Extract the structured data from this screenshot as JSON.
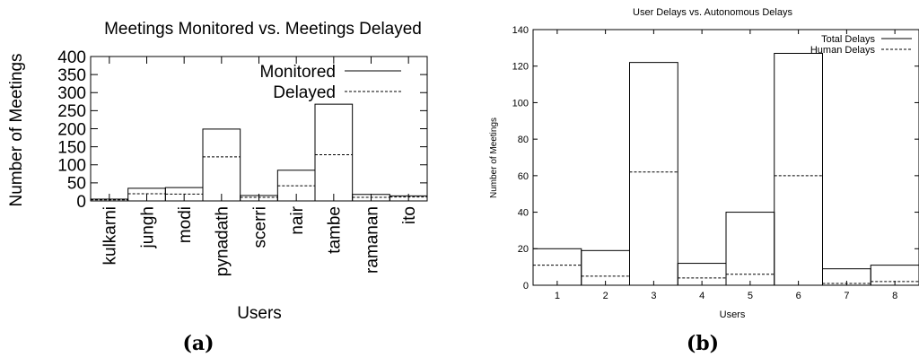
{
  "chart_data": [
    {
      "type": "bar",
      "panel_label": "(a)",
      "title": "Meetings Monitored vs. Meetings Delayed",
      "xlabel": "Users",
      "ylabel": "Number of Meetings",
      "categories": [
        "kulkarni",
        "jungh",
        "modi",
        "pynadath",
        "scerri",
        "nair",
        "tambe",
        "ramanan",
        "ito"
      ],
      "ylim": [
        0,
        400
      ],
      "yticks": [
        0,
        50,
        100,
        150,
        200,
        250,
        300,
        350,
        400
      ],
      "legend_position": "top-right",
      "grid": false,
      "series": [
        {
          "name": "Monitored",
          "style": "solid",
          "values": [
            5,
            35,
            37,
            199,
            15,
            85,
            268,
            18,
            14
          ]
        },
        {
          "name": "Delayed",
          "style": "dashed",
          "values": [
            3,
            20,
            19,
            122,
            10,
            42,
            128,
            10,
            11
          ]
        }
      ]
    },
    {
      "type": "bar",
      "panel_label": "(b)",
      "title": "User Delays vs. Autonomous Delays",
      "xlabel": "Users",
      "ylabel": "Number of Meetings",
      "categories": [
        "1",
        "2",
        "3",
        "4",
        "5",
        "6",
        "7",
        "8"
      ],
      "ylim": [
        0,
        140
      ],
      "yticks": [
        0,
        20,
        40,
        60,
        80,
        100,
        120,
        140
      ],
      "legend_position": "top-right",
      "grid": false,
      "series": [
        {
          "name": "Total Delays",
          "style": "solid",
          "values": [
            20,
            19,
            122,
            12,
            40,
            127,
            9,
            11
          ]
        },
        {
          "name": "Human Delays",
          "style": "dashed",
          "values": [
            11,
            5,
            62,
            4,
            6,
            60,
            1,
            2
          ]
        }
      ]
    }
  ]
}
